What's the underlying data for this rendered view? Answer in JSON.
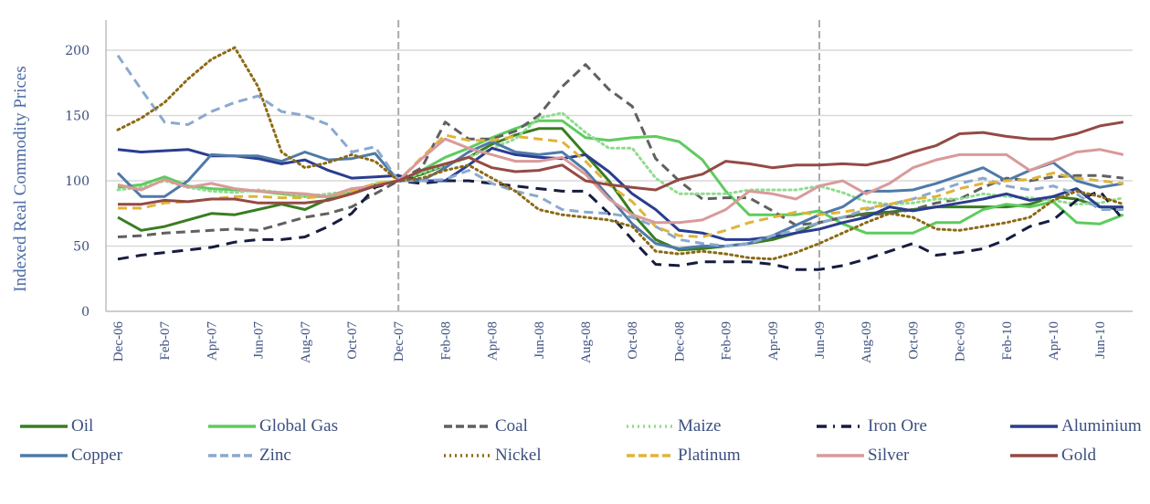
{
  "chart_data": {
    "type": "line",
    "title": "",
    "xlabel": "",
    "ylabel": "Indexed Real Commodity Prices",
    "ylim": [
      0,
      220
    ],
    "yticks": [
      0,
      50,
      100,
      150,
      200
    ],
    "grid": true,
    "legend_position": "bottom",
    "x": [
      "Dec-06",
      "Jan-07",
      "Feb-07",
      "Mar-07",
      "Apr-07",
      "May-07",
      "Jun-07",
      "Jul-07",
      "Aug-07",
      "Sep-07",
      "Oct-07",
      "Nov-07",
      "Dec-07",
      "Jan-08",
      "Feb-08",
      "Mar-08",
      "Apr-08",
      "May-08",
      "Jun-08",
      "Jul-08",
      "Aug-08",
      "Sep-08",
      "Oct-08",
      "Nov-08",
      "Dec-08",
      "Jan-09",
      "Feb-09",
      "Mar-09",
      "Apr-09",
      "May-09",
      "Jun-09",
      "Jul-09",
      "Aug-09",
      "Sep-09",
      "Oct-09",
      "Nov-09",
      "Dec-09",
      "Jan-10",
      "Feb-10",
      "Mar-10",
      "Apr-10",
      "May-10",
      "Jun-10",
      "Jul-10"
    ],
    "xtick_labels": [
      "Dec-06",
      "Feb-07",
      "Apr-07",
      "Jun-07",
      "Aug-07",
      "Oct-07",
      "Dec-07",
      "Feb-08",
      "Apr-08",
      "Jun-08",
      "Aug-08",
      "Oct-08",
      "Dec-08",
      "Feb-09",
      "Apr-09",
      "Jun-09",
      "Aug-09",
      "Oct-09",
      "Dec-09",
      "Feb-10",
      "Apr-10",
      "Jun-10"
    ],
    "reference_lines": [
      "Dec-07",
      "Jun-09"
    ],
    "series": [
      {
        "name": "Oil",
        "color": "#3a7d22",
        "style": "solid",
        "values": [
          72,
          62,
          65,
          70,
          75,
          74,
          78,
          82,
          78,
          86,
          91,
          97,
          100,
          105,
          112,
          118,
          128,
          135,
          140,
          140,
          120,
          100,
          75,
          55,
          47,
          48,
          50,
          52,
          55,
          60,
          68,
          72,
          75,
          76,
          78,
          80,
          80,
          80,
          80,
          82,
          88,
          86,
          80,
          78
        ]
      },
      {
        "name": "Global Gas",
        "color": "#5ecb5e",
        "style": "solid",
        "values": [
          95,
          97,
          103,
          96,
          94,
          93,
          92,
          90,
          88,
          88,
          90,
          96,
          100,
          108,
          118,
          125,
          133,
          140,
          146,
          146,
          133,
          131,
          133,
          134,
          130,
          116,
          92,
          74,
          74,
          74,
          77,
          67,
          60,
          60,
          60,
          68,
          68,
          78,
          82,
          80,
          84,
          68,
          67,
          74
        ]
      },
      {
        "name": "Coal",
        "color": "#606060",
        "style": "dash",
        "values": [
          57,
          58,
          60,
          61,
          62,
          63,
          62,
          67,
          72,
          75,
          80,
          90,
          100,
          110,
          145,
          132,
          132,
          138,
          150,
          172,
          189,
          170,
          157,
          117,
          100,
          86,
          87,
          87,
          77,
          66,
          68,
          72,
          74,
          75,
          78,
          83,
          86,
          95,
          102,
          100,
          103,
          104,
          104,
          102
        ]
      },
      {
        "name": "Maize",
        "color": "#8fdc8f",
        "style": "dot",
        "values": [
          93,
          95,
          100,
          95,
          92,
          91,
          93,
          91,
          88,
          90,
          92,
          98,
          100,
          106,
          112,
          118,
          125,
          132,
          148,
          152,
          137,
          125,
          125,
          102,
          90,
          90,
          90,
          93,
          93,
          93,
          96,
          91,
          84,
          82,
          83,
          86,
          86,
          90,
          88,
          87,
          85,
          82,
          83,
          87
        ]
      },
      {
        "name": "Iron Ore",
        "color": "#161c40",
        "style": "dashdot",
        "values": [
          40,
          43,
          45,
          47,
          49,
          53,
          55,
          55,
          57,
          65,
          75,
          95,
          100,
          98,
          100,
          100,
          98,
          96,
          94,
          92,
          92,
          75,
          55,
          36,
          35,
          38,
          38,
          38,
          36,
          32,
          32,
          35,
          40,
          46,
          52,
          43,
          45,
          48,
          55,
          65,
          70,
          85,
          92,
          70
        ]
      },
      {
        "name": "Aluminium",
        "color": "#2a3d8f",
        "style": "solid",
        "values": [
          124,
          122,
          123,
          124,
          119,
          119,
          117,
          113,
          116,
          108,
          102,
          103,
          104,
          100,
          100,
          112,
          125,
          120,
          118,
          117,
          120,
          107,
          90,
          78,
          62,
          60,
          55,
          55,
          57,
          60,
          63,
          68,
          72,
          80,
          77,
          80,
          83,
          86,
          90,
          85,
          88,
          94,
          80,
          80
        ]
      },
      {
        "name": "Copper",
        "color": "#4f7aa8",
        "style": "solid",
        "values": [
          106,
          88,
          88,
          100,
          120,
          119,
          119,
          115,
          122,
          116,
          117,
          121,
          100,
          100,
          110,
          122,
          130,
          122,
          120,
          122,
          108,
          88,
          67,
          52,
          48,
          50,
          50,
          52,
          58,
          66,
          74,
          80,
          92,
          92,
          93,
          98,
          104,
          110,
          100,
          108,
          114,
          100,
          95,
          98
        ]
      },
      {
        "name": "Zinc",
        "color": "#8aa9cd",
        "style": "dash",
        "values": [
          196,
          170,
          145,
          143,
          153,
          160,
          165,
          153,
          150,
          143,
          122,
          126,
          100,
          100,
          101,
          108,
          98,
          92,
          88,
          78,
          76,
          75,
          72,
          65,
          55,
          52,
          50,
          52,
          58,
          62,
          68,
          72,
          78,
          82,
          86,
          92,
          98,
          102,
          96,
          93,
          96,
          90,
          78,
          78
        ]
      },
      {
        "name": "Nickel",
        "color": "#8c6a14",
        "style": "dot",
        "values": [
          139,
          148,
          160,
          178,
          193,
          202,
          172,
          122,
          110,
          114,
          120,
          115,
          100,
          102,
          108,
          112,
          102,
          92,
          78,
          74,
          72,
          70,
          65,
          46,
          44,
          46,
          44,
          41,
          40,
          45,
          52,
          60,
          68,
          75,
          72,
          63,
          62,
          65,
          68,
          72,
          85,
          92,
          88,
          82
        ]
      },
      {
        "name": "Platinum",
        "color": "#e0b43a",
        "style": "dash",
        "values": [
          79,
          79,
          83,
          84,
          86,
          88,
          88,
          87,
          87,
          88,
          92,
          98,
          100,
          118,
          135,
          131,
          131,
          134,
          132,
          130,
          115,
          97,
          84,
          65,
          58,
          57,
          62,
          68,
          72,
          76,
          74,
          76,
          79,
          82,
          86,
          88,
          94,
          98,
          100,
          101,
          106,
          102,
          100,
          98
        ]
      },
      {
        "name": "Silver",
        "color": "#d99a9a",
        "style": "solid",
        "values": [
          97,
          93,
          101,
          95,
          98,
          94,
          92,
          91,
          90,
          88,
          94,
          96,
          100,
          117,
          132,
          125,
          120,
          115,
          115,
          118,
          105,
          86,
          74,
          68,
          68,
          70,
          78,
          92,
          90,
          86,
          96,
          100,
          90,
          98,
          110,
          116,
          120,
          120,
          120,
          108,
          115,
          122,
          124,
          120
        ]
      },
      {
        "name": "Gold",
        "color": "#944a45",
        "style": "solid",
        "values": [
          82,
          82,
          85,
          84,
          86,
          86,
          83,
          83,
          83,
          85,
          90,
          96,
          100,
          108,
          113,
          118,
          110,
          107,
          108,
          112,
          100,
          97,
          95,
          93,
          101,
          105,
          115,
          113,
          110,
          112,
          112,
          113,
          112,
          116,
          122,
          127,
          136,
          137,
          134,
          132,
          132,
          136,
          142,
          145
        ]
      }
    ]
  },
  "legend": {
    "items": [
      {
        "label": "Oil"
      },
      {
        "label": "Global Gas"
      },
      {
        "label": "Coal"
      },
      {
        "label": "Maize"
      },
      {
        "label": "Iron Ore"
      },
      {
        "label": "Aluminium"
      },
      {
        "label": "Copper"
      },
      {
        "label": "Zinc"
      },
      {
        "label": "Nickel"
      },
      {
        "label": "Platinum"
      },
      {
        "label": "Silver"
      },
      {
        "label": "Gold"
      }
    ]
  }
}
